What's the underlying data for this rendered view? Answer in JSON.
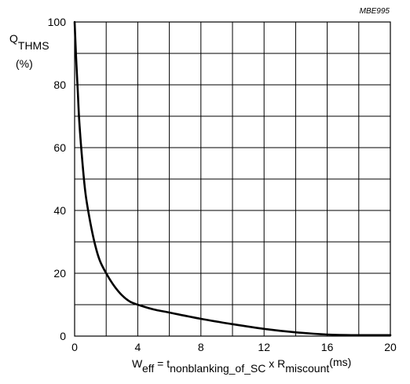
{
  "chart_data": {
    "type": "line",
    "reference": "MBE995",
    "ylabel": {
      "main": "Q",
      "sub": "THMS",
      "unit": "(%)"
    },
    "xlabel": {
      "w": "W",
      "w_sub": "eff",
      "eq": " = t",
      "t_sub": "nonblanking_of_SC",
      "x": " x R",
      "r_sub": "miscount",
      "unit": "(ms)"
    },
    "xlim": [
      0,
      20
    ],
    "ylim": [
      0,
      100
    ],
    "x_ticks": [
      "0",
      "4",
      "8",
      "12",
      "16",
      "20"
    ],
    "y_ticks": [
      "0",
      "20",
      "40",
      "60",
      "80",
      "100"
    ],
    "grid": true,
    "series": [
      {
        "x": [
          0,
          0.1,
          0.2,
          0.3,
          0.5,
          0.7,
          1.0,
          1.3,
          1.6,
          2.0,
          2.5,
          3.0,
          3.5,
          4.0,
          5.0,
          6.0,
          8.0,
          10.0,
          12.0,
          14.0,
          16.0,
          18.0,
          20.0
        ],
        "y": [
          100,
          88,
          78,
          68,
          55,
          45,
          36,
          29,
          24,
          20,
          16,
          13,
          11,
          10,
          8.5,
          7.5,
          5.5,
          3.8,
          2.3,
          1.2,
          0.5,
          0.3,
          0.3
        ]
      }
    ]
  }
}
